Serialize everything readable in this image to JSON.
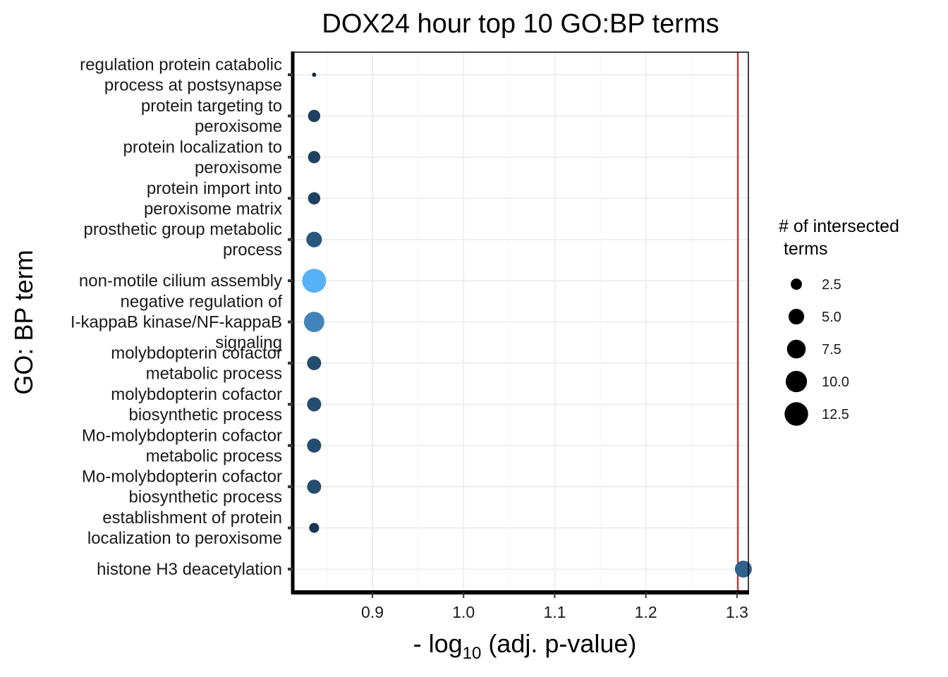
{
  "chart_data": {
    "type": "scatter",
    "title": "DOX24 hour top 10 GO:BP terms",
    "xlabel_prefix": "- log",
    "xlabel_sub": "10",
    "xlabel_suffix": " (adj. p-value)",
    "ylabel": "GO: BP term",
    "xlim": [
      0.8125,
      1.3125
    ],
    "x_ticks": [
      0.9,
      1.0,
      1.1,
      1.2,
      1.3
    ],
    "x_tick_labels": [
      "0.9",
      "1.0",
      "1.1",
      "1.2",
      "1.3"
    ],
    "reference_line": {
      "x": 1.301,
      "color": "#d7191c"
    },
    "grid": true,
    "legend": {
      "title_lines": [
        "# of intersected",
        " terms"
      ],
      "placement": "right",
      "sizes": [
        2.5,
        5.0,
        7.5,
        10.0,
        12.5
      ],
      "labels": [
        "2.5",
        "5.0",
        "7.5",
        "10.0",
        "12.5"
      ]
    },
    "size_range": [
      1,
      13
    ],
    "color_low": "#132b43",
    "color_high": "#56b1f7",
    "points": [
      {
        "lines": [
          "regulation protein catabolic",
          "process at postsynapse"
        ],
        "x": 0.836,
        "size": 1
      },
      {
        "lines": [
          "protein targeting to",
          "peroxisome"
        ],
        "x": 0.836,
        "size": 3
      },
      {
        "lines": [
          "protein localization to",
          "peroxisome"
        ],
        "x": 0.836,
        "size": 3
      },
      {
        "lines": [
          "protein import into",
          "peroxisome matrix"
        ],
        "x": 0.836,
        "size": 3
      },
      {
        "lines": [
          "prosthetic group metabolic",
          "process"
        ],
        "x": 0.836,
        "size": 5
      },
      {
        "lines": [
          "non-motile cilium assembly"
        ],
        "x": 0.836,
        "size": 13
      },
      {
        "lines": [
          "negative regulation of",
          "I-kappaB kinase/NF-kappaB",
          "signaling"
        ],
        "x": 0.836,
        "size": 9
      },
      {
        "lines": [
          "molybdopterin cofactor",
          "metabolic process"
        ],
        "x": 0.836,
        "size": 4
      },
      {
        "lines": [
          "molybdopterin cofactor",
          "biosynthetic process"
        ],
        "x": 0.836,
        "size": 4
      },
      {
        "lines": [
          "Mo-molybdopterin cofactor",
          "metabolic process"
        ],
        "x": 0.836,
        "size": 4
      },
      {
        "lines": [
          "Mo-molybdopterin cofactor",
          "biosynthetic process"
        ],
        "x": 0.836,
        "size": 4
      },
      {
        "lines": [
          "establishment of protein",
          "localization to peroxisome"
        ],
        "x": 0.836,
        "size": 2
      },
      {
        "lines": [
          "histone H3 deacetylation"
        ],
        "x": 1.307,
        "size": 6
      }
    ]
  }
}
